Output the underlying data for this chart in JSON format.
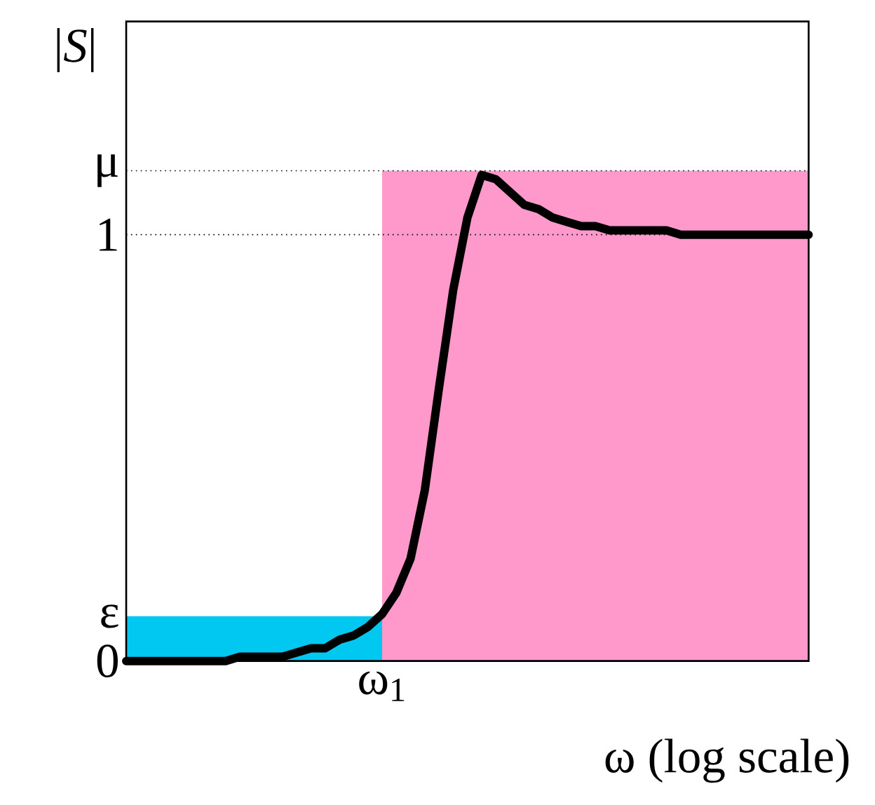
{
  "chart_data": {
    "type": "line",
    "xlabel": "ω  (log scale)",
    "ylabel": "|*S*|",
    "ylim": [
      0,
      1.5
    ],
    "categories": [
      null,
      null,
      null,
      null,
      null,
      null,
      null,
      null,
      null,
      null,
      null,
      null,
      null,
      null,
      null,
      null,
      null,
      null,
      null,
      null,
      null,
      null,
      null,
      null,
      null,
      null,
      null,
      null,
      null,
      null,
      null,
      null,
      null,
      null,
      null,
      null,
      null,
      null,
      null,
      null,
      null,
      null,
      null,
      null,
      null,
      null,
      null,
      null,
      null
    ],
    "annotations": [
      "ω$_{1}$"
    ],
    "yticks": [
      {
        "value": 0,
        "label": "0"
      },
      {
        "value": 0.105,
        "label": "ε"
      },
      {
        "value": 1,
        "label": "1"
      },
      {
        "value": 1.15,
        "label": "μ"
      }
    ],
    "ref_lines": [
      {
        "axis": "y",
        "value": 1,
        "color": "#000000",
        "line_style": "dotted"
      },
      {
        "axis": "y",
        "value": 1.15,
        "color": "#000000",
        "line_style": "dotted"
      }
    ],
    "series": [
      {
        "type": "area",
        "color": "#00c8f0",
        "values": [
          0.105,
          0.105,
          0.105,
          0.105,
          0.105,
          0.105,
          0.105,
          0.105,
          0.105,
          0.105,
          0.105,
          0.105,
          0.105,
          0.105,
          0.105,
          0.105,
          0.105,
          0.105,
          0.105,
          null,
          null,
          null,
          null,
          null,
          null,
          null,
          null,
          null,
          null,
          null,
          null,
          null,
          null,
          null,
          null,
          null,
          null,
          null,
          null,
          null,
          null,
          null,
          null,
          null,
          null,
          null,
          null,
          null,
          null
        ]
      },
      {
        "type": "area",
        "color": "#ff99cc",
        "values": [
          null,
          null,
          null,
          null,
          null,
          null,
          null,
          null,
          null,
          null,
          null,
          null,
          null,
          null,
          null,
          null,
          null,
          null,
          1.15,
          1.15,
          1.15,
          1.15,
          1.15,
          1.15,
          1.15,
          1.15,
          1.15,
          1.15,
          1.15,
          1.15,
          1.15,
          1.15,
          1.15,
          1.15,
          1.15,
          1.15,
          1.15,
          1.15,
          1.15,
          1.15,
          1.15,
          1.15,
          1.15,
          1.15,
          1.15,
          1.15,
          1.15,
          1.15,
          1.15
        ]
      },
      {
        "color": "#000000",
        "values": [
          0,
          0,
          0,
          0,
          0,
          0,
          0,
          0,
          0.01,
          0.01,
          0.01,
          0.01,
          0.02,
          0.03,
          0.03,
          0.05,
          0.06,
          0.08,
          0.11,
          0.16,
          0.24,
          0.4,
          0.64,
          0.87,
          1.04,
          1.14,
          1.13,
          1.1,
          1.07,
          1.06,
          1.04,
          1.03,
          1.02,
          1.02,
          1.01,
          1.01,
          1.01,
          1.01,
          1.01,
          1,
          1,
          1,
          1,
          1,
          1,
          1,
          1,
          1,
          1
        ]
      }
    ]
  }
}
